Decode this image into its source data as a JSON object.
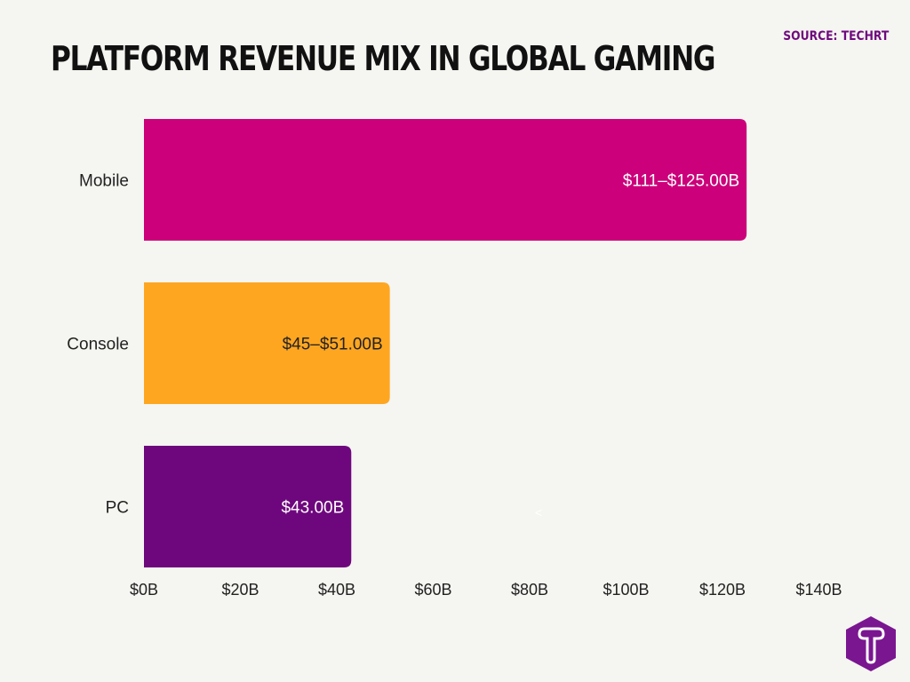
{
  "title": "PLATFORM REVENUE MIX IN GLOBAL GAMING",
  "source": "SOURCE: TECHRT",
  "stray_mark": "<",
  "chart_data": {
    "type": "bar",
    "orientation": "horizontal",
    "categories": [
      "Mobile",
      "Console",
      "PC"
    ],
    "values": [
      125,
      51,
      43
    ],
    "data_labels": [
      "$111–$125.00B",
      "$45–$51.00B",
      "$43.00B"
    ],
    "colors": [
      "#cc007a",
      "#ffa621",
      "#6e077d"
    ],
    "label_colors": [
      "#ffffff",
      "#222222",
      "#ffffff"
    ],
    "xlim": [
      0,
      140
    ],
    "xticks": [
      0,
      20,
      40,
      60,
      80,
      100,
      120,
      140
    ],
    "xtick_labels": [
      "$0B",
      "$20B",
      "$40B",
      "$60B",
      "$80B",
      "$100B",
      "$120B",
      "$140B"
    ],
    "grid": false,
    "legend": "none"
  }
}
